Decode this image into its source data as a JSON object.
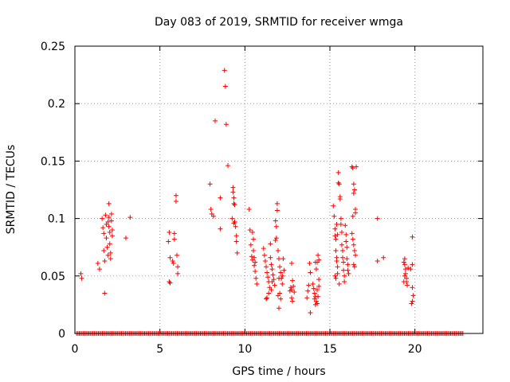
{
  "chart_data": {
    "type": "scatter",
    "title": "Day 083 of 2019, SRMTID for receiver wmga",
    "xlabel": "GPS time / hours",
    "ylabel": "SRMTID / TECUs",
    "xlim": [
      0,
      24
    ],
    "ylim": [
      0,
      0.25
    ],
    "x_ticks": [
      "0",
      "5",
      "10",
      "15",
      "20"
    ],
    "y_ticks": [
      "0",
      "0.05",
      "0.1",
      "0.15",
      "0.2",
      "0.25"
    ],
    "grid": true,
    "marker": "+",
    "series_color": "#ff0000",
    "baseline": {
      "y": 0,
      "x_start": 0.1,
      "x_end": 22.8,
      "step": 0.08
    },
    "points": [
      [
        0.35,
        0.052
      ],
      [
        0.4,
        0.048
      ],
      [
        1.35,
        0.061
      ],
      [
        1.45,
        0.056
      ],
      [
        1.6,
        0.1
      ],
      [
        1.65,
        0.092
      ],
      [
        1.7,
        0.087
      ],
      [
        1.7,
        0.072
      ],
      [
        1.75,
        0.063
      ],
      [
        1.75,
        0.035
      ],
      [
        1.8,
        0.103
      ],
      [
        1.85,
        0.083
      ],
      [
        1.9,
        0.075
      ],
      [
        1.95,
        0.068
      ],
      [
        1.95,
        0.097
      ],
      [
        2.0,
        0.113
      ],
      [
        2.0,
        0.093
      ],
      [
        2.05,
        0.088
      ],
      [
        2.05,
        0.078
      ],
      [
        2.1,
        0.07
      ],
      [
        2.1,
        0.065
      ],
      [
        2.15,
        0.104
      ],
      [
        2.15,
        0.098
      ],
      [
        2.2,
        0.09
      ],
      [
        2.2,
        0.085
      ],
      [
        2.0,
        0.101
      ],
      [
        1.85,
        0.095
      ],
      [
        3.0,
        0.083
      ],
      [
        3.25,
        0.101
      ],
      [
        5.5,
        0.08
      ],
      [
        5.55,
        0.088
      ],
      [
        5.6,
        0.066
      ],
      [
        5.55,
        0.045
      ],
      [
        5.6,
        0.044
      ],
      [
        5.75,
        0.063
      ],
      [
        5.8,
        0.061
      ],
      [
        5.85,
        0.087
      ],
      [
        5.85,
        0.082
      ],
      [
        5.95,
        0.115
      ],
      [
        5.95,
        0.12
      ],
      [
        6.0,
        0.068
      ],
      [
        6.05,
        0.058
      ],
      [
        6.05,
        0.052
      ],
      [
        7.95,
        0.13
      ],
      [
        8.0,
        0.108
      ],
      [
        8.05,
        0.104
      ],
      [
        8.15,
        0.102
      ],
      [
        8.25,
        0.185
      ],
      [
        8.55,
        0.118
      ],
      [
        8.55,
        0.091
      ],
      [
        8.8,
        0.229
      ],
      [
        8.85,
        0.215
      ],
      [
        8.9,
        0.182
      ],
      [
        9.0,
        0.146
      ],
      [
        9.25,
        0.1
      ],
      [
        9.3,
        0.127
      ],
      [
        9.3,
        0.123
      ],
      [
        9.35,
        0.118
      ],
      [
        9.35,
        0.113
      ],
      [
        9.4,
        0.097
      ],
      [
        9.45,
        0.093
      ],
      [
        9.5,
        0.085
      ],
      [
        9.5,
        0.08
      ],
      [
        9.55,
        0.07
      ],
      [
        9.4,
        0.112
      ],
      [
        9.35,
        0.096
      ],
      [
        10.25,
        0.108
      ],
      [
        10.3,
        0.09
      ],
      [
        10.35,
        0.077
      ],
      [
        10.4,
        0.067
      ],
      [
        10.45,
        0.088
      ],
      [
        10.5,
        0.082
      ],
      [
        10.5,
        0.072
      ],
      [
        10.55,
        0.059
      ],
      [
        10.6,
        0.054
      ],
      [
        10.65,
        0.048
      ],
      [
        10.7,
        0.043
      ],
      [
        10.55,
        0.066
      ],
      [
        10.45,
        0.064
      ],
      [
        10.6,
        0.062
      ],
      [
        11.1,
        0.074
      ],
      [
        11.15,
        0.068
      ],
      [
        11.2,
        0.063
      ],
      [
        11.25,
        0.058
      ],
      [
        11.3,
        0.053
      ],
      [
        11.35,
        0.049
      ],
      [
        11.4,
        0.045
      ],
      [
        11.45,
        0.04
      ],
      [
        11.5,
        0.078
      ],
      [
        11.5,
        0.066
      ],
      [
        11.55,
        0.06
      ],
      [
        11.6,
        0.056
      ],
      [
        11.65,
        0.051
      ],
      [
        11.7,
        0.047
      ],
      [
        11.75,
        0.042
      ],
      [
        11.8,
        0.098
      ],
      [
        11.85,
        0.093
      ],
      [
        11.9,
        0.113
      ],
      [
        11.9,
        0.107
      ],
      [
        11.85,
        0.083
      ],
      [
        11.8,
        0.081
      ],
      [
        11.95,
        0.072
      ],
      [
        12.0,
        0.065
      ],
      [
        12.05,
        0.058
      ],
      [
        12.1,
        0.053
      ],
      [
        12.15,
        0.048
      ],
      [
        12.2,
        0.043
      ],
      [
        12.25,
        0.065
      ],
      [
        12.3,
        0.055
      ],
      [
        12.05,
        0.035
      ],
      [
        12.1,
        0.03
      ],
      [
        12.0,
        0.022
      ],
      [
        11.95,
        0.033
      ],
      [
        11.4,
        0.035
      ],
      [
        11.3,
        0.031
      ],
      [
        11.25,
        0.03
      ],
      [
        11.6,
        0.045
      ],
      [
        11.55,
        0.038
      ],
      [
        12.2,
        0.05
      ],
      [
        12.0,
        0.048
      ],
      [
        12.75,
        0.061
      ],
      [
        12.8,
        0.046
      ],
      [
        12.85,
        0.041
      ],
      [
        12.9,
        0.036
      ],
      [
        12.75,
        0.031
      ],
      [
        12.8,
        0.028
      ],
      [
        12.7,
        0.04
      ],
      [
        12.75,
        0.038
      ],
      [
        12.65,
        0.037
      ],
      [
        13.65,
        0.031
      ],
      [
        13.7,
        0.037
      ],
      [
        13.75,
        0.042
      ],
      [
        13.8,
        0.061
      ],
      [
        13.85,
        0.053
      ],
      [
        13.85,
        0.018
      ],
      [
        14.0,
        0.043
      ],
      [
        14.05,
        0.039
      ],
      [
        14.1,
        0.035
      ],
      [
        14.15,
        0.032
      ],
      [
        14.2,
        0.028
      ],
      [
        14.25,
        0.038
      ],
      [
        14.3,
        0.032
      ],
      [
        14.35,
        0.047
      ],
      [
        14.35,
        0.041
      ],
      [
        14.3,
        0.068
      ],
      [
        14.35,
        0.064
      ],
      [
        14.25,
        0.062
      ],
      [
        14.2,
        0.056
      ],
      [
        14.15,
        0.062
      ],
      [
        14.15,
        0.025
      ],
      [
        14.25,
        0.026
      ],
      [
        14.1,
        0.03
      ],
      [
        15.2,
        0.111
      ],
      [
        15.25,
        0.102
      ],
      [
        15.3,
        0.091
      ],
      [
        15.3,
        0.085
      ],
      [
        15.35,
        0.082
      ],
      [
        15.35,
        0.072
      ],
      [
        15.4,
        0.066
      ],
      [
        15.4,
        0.063
      ],
      [
        15.45,
        0.058
      ],
      [
        15.45,
        0.052
      ],
      [
        15.5,
        0.14
      ],
      [
        15.5,
        0.131
      ],
      [
        15.55,
        0.13
      ],
      [
        15.6,
        0.119
      ],
      [
        15.6,
        0.117
      ],
      [
        15.65,
        0.1
      ],
      [
        15.65,
        0.095
      ],
      [
        15.7,
        0.088
      ],
      [
        15.7,
        0.077
      ],
      [
        15.75,
        0.072
      ],
      [
        15.75,
        0.066
      ],
      [
        15.8,
        0.062
      ],
      [
        15.8,
        0.055
      ],
      [
        15.85,
        0.05
      ],
      [
        15.85,
        0.045
      ],
      [
        15.9,
        0.094
      ],
      [
        15.95,
        0.086
      ],
      [
        15.95,
        0.08
      ],
      [
        16.0,
        0.075
      ],
      [
        16.0,
        0.065
      ],
      [
        16.05,
        0.06
      ],
      [
        16.05,
        0.055
      ],
      [
        16.1,
        0.052
      ],
      [
        15.4,
        0.095
      ],
      [
        15.45,
        0.086
      ],
      [
        15.3,
        0.05
      ],
      [
        15.35,
        0.048
      ],
      [
        15.55,
        0.043
      ],
      [
        16.3,
        0.145
      ],
      [
        16.35,
        0.144
      ],
      [
        16.4,
        0.13
      ],
      [
        16.4,
        0.122
      ],
      [
        16.45,
        0.125
      ],
      [
        16.5,
        0.108
      ],
      [
        16.35,
        0.102
      ],
      [
        16.3,
        0.087
      ],
      [
        16.35,
        0.082
      ],
      [
        16.4,
        0.077
      ],
      [
        16.45,
        0.072
      ],
      [
        16.5,
        0.068
      ],
      [
        16.4,
        0.06
      ],
      [
        16.45,
        0.058
      ],
      [
        16.55,
        0.145
      ],
      [
        16.5,
        0.105
      ],
      [
        17.8,
        0.1
      ],
      [
        17.8,
        0.063
      ],
      [
        18.15,
        0.066
      ],
      [
        19.35,
        0.062
      ],
      [
        19.4,
        0.065
      ],
      [
        19.4,
        0.06
      ],
      [
        19.45,
        0.056
      ],
      [
        19.45,
        0.052
      ],
      [
        19.5,
        0.048
      ],
      [
        19.5,
        0.045
      ],
      [
        19.55,
        0.042
      ],
      [
        19.6,
        0.057
      ],
      [
        19.35,
        0.045
      ],
      [
        19.4,
        0.05
      ],
      [
        19.85,
        0.084
      ],
      [
        19.85,
        0.06
      ],
      [
        19.85,
        0.04
      ],
      [
        19.9,
        0.033
      ],
      [
        19.85,
        0.028
      ],
      [
        19.8,
        0.026
      ],
      [
        19.75,
        0.056
      ]
    ]
  }
}
